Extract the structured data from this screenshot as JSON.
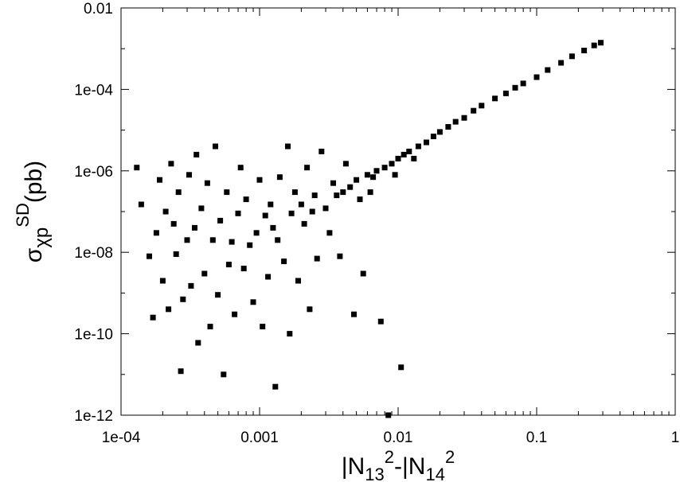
{
  "chart_data": {
    "type": "scatter",
    "title": "",
    "xlabel": {
      "base": "|N",
      "sub1": "13",
      "sup1": "2",
      "mid": "-|N",
      "sub2": "14",
      "sup2": "2"
    },
    "ylabel": {
      "base": "σ",
      "sub": "χp",
      "sup": "SD",
      "unit": "(pb)"
    },
    "xscale": "log",
    "yscale": "log",
    "xlim": [
      0.0001,
      1
    ],
    "ylim": [
      1e-12,
      0.01
    ],
    "x_ticks": [
      {
        "value": 0.0001,
        "label": "1e-04"
      },
      {
        "value": 0.001,
        "label": "0.001"
      },
      {
        "value": 0.01,
        "label": "0.01"
      },
      {
        "value": 0.1,
        "label": "0.1"
      },
      {
        "value": 1,
        "label": "1"
      }
    ],
    "y_ticks": [
      {
        "value": 1e-12,
        "label": "1e-12"
      },
      {
        "value": 1e-10,
        "label": "1e-10"
      },
      {
        "value": 1e-08,
        "label": "1e-08"
      },
      {
        "value": 1e-06,
        "label": "1e-06"
      },
      {
        "value": 0.0001,
        "label": "1e-04"
      },
      {
        "value": 0.01,
        "label": "0.01"
      }
    ],
    "grid": false,
    "legend": "none",
    "marker": "filled-square",
    "marker_color": "#000000",
    "series": [
      {
        "values": [
          [
            0.00013,
            1.2e-06
          ],
          [
            0.00014,
            1.5e-07
          ],
          [
            0.00016,
            8e-09
          ],
          [
            0.00017,
            2.5e-10
          ],
          [
            0.00018,
            3e-08
          ],
          [
            0.00019,
            6e-07
          ],
          [
            0.0002,
            2e-09
          ],
          [
            0.00021,
            1e-07
          ],
          [
            0.00022,
            4e-10
          ],
          [
            0.00023,
            1.5e-06
          ],
          [
            0.00024,
            5e-08
          ],
          [
            0.00025,
            9e-09
          ],
          [
            0.00026,
            3e-07
          ],
          [
            0.00027,
            1.2e-11
          ],
          [
            0.00028,
            7e-10
          ],
          [
            0.0003,
            2e-08
          ],
          [
            0.00031,
            8e-07
          ],
          [
            0.00032,
            1.5e-09
          ],
          [
            0.00034,
            4e-08
          ],
          [
            0.00035,
            2.5e-06
          ],
          [
            0.00036,
            6e-11
          ],
          [
            0.00038,
            1.2e-07
          ],
          [
            0.0004,
            3e-09
          ],
          [
            0.00042,
            5e-07
          ],
          [
            0.00044,
            1.5e-10
          ],
          [
            0.00046,
            2e-08
          ],
          [
            0.00048,
            4e-06
          ],
          [
            0.0005,
            9e-10
          ],
          [
            0.00052,
            6e-08
          ],
          [
            0.00055,
            1e-11
          ],
          [
            0.00058,
            3e-07
          ],
          [
            0.0006,
            5e-09
          ],
          [
            0.00063,
            1.8e-08
          ],
          [
            0.00066,
            3e-10
          ],
          [
            0.0007,
            9e-08
          ],
          [
            0.00073,
            1.2e-06
          ],
          [
            0.00077,
            4e-09
          ],
          [
            0.0008,
            2e-07
          ],
          [
            0.00085,
            1.5e-08
          ],
          [
            0.0009,
            6e-10
          ],
          [
            0.00095,
            3e-08
          ],
          [
            0.001,
            6e-07
          ],
          [
            0.00105,
            1.5e-10
          ],
          [
            0.0011,
            8e-08
          ],
          [
            0.00115,
            2.5e-09
          ],
          [
            0.0012,
            1.5e-07
          ],
          [
            0.00125,
            4e-08
          ],
          [
            0.0013,
            5e-12
          ],
          [
            0.00135,
            2e-08
          ],
          [
            0.0014,
            7e-07
          ],
          [
            0.0015,
            6e-09
          ],
          [
            0.0016,
            4e-06
          ],
          [
            0.00165,
            1e-10
          ],
          [
            0.0017,
            9e-08
          ],
          [
            0.0018,
            3e-07
          ],
          [
            0.0019,
            2e-09
          ],
          [
            0.002,
            1.5e-07
          ],
          [
            0.0021,
            5e-08
          ],
          [
            0.0022,
            1.2e-06
          ],
          [
            0.0023,
            4e-10
          ],
          [
            0.0024,
            1e-07
          ],
          [
            0.0025,
            2.5e-07
          ],
          [
            0.0026,
            7e-09
          ],
          [
            0.0028,
            3e-06
          ],
          [
            0.003,
            1.2e-07
          ],
          [
            0.0032,
            3e-08
          ],
          [
            0.0034,
            5e-07
          ],
          [
            0.0036,
            2.5e-07
          ],
          [
            0.0038,
            8e-09
          ],
          [
            0.004,
            3e-07
          ],
          [
            0.0042,
            1.5e-06
          ],
          [
            0.0045,
            4e-07
          ],
          [
            0.0048,
            3e-10
          ],
          [
            0.005,
            6e-07
          ],
          [
            0.0053,
            2e-07
          ],
          [
            0.0056,
            3e-09
          ],
          [
            0.006,
            8e-07
          ],
          [
            0.0063,
            3e-07
          ],
          [
            0.0066,
            7e-07
          ],
          [
            0.007,
            1e-06
          ],
          [
            0.0075,
            2e-10
          ],
          [
            0.008,
            1.2e-06
          ],
          [
            0.0085,
            1e-12
          ],
          [
            0.009,
            1.5e-06
          ],
          [
            0.0095,
            8e-07
          ],
          [
            0.01,
            2e-06
          ],
          [
            0.0105,
            1.5e-11
          ],
          [
            0.011,
            2.5e-06
          ],
          [
            0.012,
            3e-06
          ],
          [
            0.013,
            2e-06
          ],
          [
            0.014,
            4e-06
          ],
          [
            0.016,
            5e-06
          ],
          [
            0.018,
            7e-06
          ],
          [
            0.02,
            9e-06
          ],
          [
            0.023,
            1.2e-05
          ],
          [
            0.026,
            1.6e-05
          ],
          [
            0.03,
            2e-05
          ],
          [
            0.035,
            3e-05
          ],
          [
            0.04,
            4e-05
          ],
          [
            0.05,
            6e-05
          ],
          [
            0.06,
            8e-05
          ],
          [
            0.07,
            0.00011
          ],
          [
            0.08,
            0.00014
          ],
          [
            0.1,
            0.0002
          ],
          [
            0.12,
            0.0003
          ],
          [
            0.15,
            0.00045
          ],
          [
            0.18,
            0.00065
          ],
          [
            0.22,
            0.0009
          ],
          [
            0.26,
            0.0012
          ],
          [
            0.29,
            0.0014
          ]
        ]
      }
    ]
  }
}
